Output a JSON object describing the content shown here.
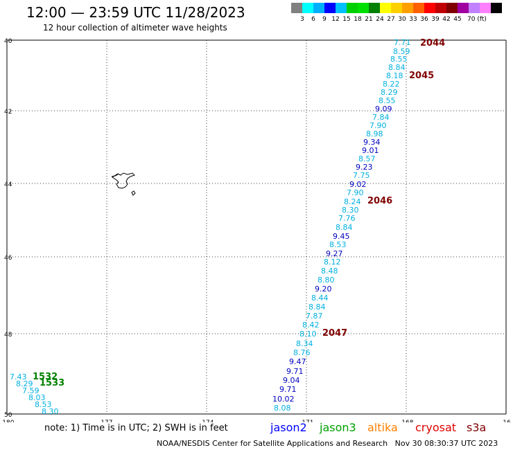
{
  "title": "12:00 — 23:59 UTC 11/28/2023",
  "subtitle": "12 hour collection of altimeter wave heights",
  "colorbar": {
    "colors": [
      "#808080",
      "#00ffff",
      "#00b0ff",
      "#0000ff",
      "#00c0ff",
      "#00d000",
      "#00e000",
      "#008000",
      "#ffff00",
      "#ffd000",
      "#ffa000",
      "#ff6000",
      "#ff0000",
      "#c00000",
      "#800000",
      "#a000a0",
      "#c080ff",
      "#ff80ff",
      "#000000"
    ],
    "labels": [
      "3",
      "6",
      "9",
      "12",
      "15",
      "18",
      "21",
      "24",
      "27",
      "30",
      "33",
      "36",
      "39",
      "42",
      "45",
      "70 (ft)"
    ]
  },
  "axes": {
    "lat_ticks": [
      "40",
      "42",
      "44",
      "46",
      "48",
      "50"
    ],
    "lon_ticks": [
      "-180",
      "-177",
      "-174",
      "-171",
      "-168",
      "-16"
    ]
  },
  "map_extent": {
    "lon_min": -180,
    "lon_max": -165,
    "lat_min": 40,
    "lat_max": 50
  },
  "track_times": [
    {
      "label": "2044",
      "color": "#800000"
    },
    {
      "label": "2045",
      "color": "#800000"
    },
    {
      "label": "2046",
      "color": "#800000"
    },
    {
      "label": "2047",
      "color": "#800000"
    },
    {
      "label": "1532",
      "color": "#008000"
    },
    {
      "label": "1533",
      "color": "#008000"
    }
  ],
  "wave_heights": [
    {
      "v": "7.71",
      "c": "#00b0e0"
    },
    {
      "v": "8.59",
      "c": "#00b0e0"
    },
    {
      "v": "8.55",
      "c": "#00b0e0"
    },
    {
      "v": "8.84",
      "c": "#00b0e0"
    },
    {
      "v": "8.18",
      "c": "#00b0e0"
    },
    {
      "v": "8.22",
      "c": "#00b0e0"
    },
    {
      "v": "8.29",
      "c": "#00b0e0"
    },
    {
      "v": "8.55",
      "c": "#00b0e0"
    },
    {
      "v": "9.09",
      "c": "#0000c0"
    },
    {
      "v": "7.84",
      "c": "#00b0e0"
    },
    {
      "v": "7.90",
      "c": "#00b0e0"
    },
    {
      "v": "8.98",
      "c": "#00b0e0"
    },
    {
      "v": "9.34",
      "c": "#0000c0"
    },
    {
      "v": "9.01",
      "c": "#0000c0"
    },
    {
      "v": "8.57",
      "c": "#00b0e0"
    },
    {
      "v": "9.23",
      "c": "#0000c0"
    },
    {
      "v": "7.75",
      "c": "#00b0e0"
    },
    {
      "v": "9.02",
      "c": "#0000c0"
    },
    {
      "v": "7.90",
      "c": "#00b0e0"
    },
    {
      "v": "8.24",
      "c": "#00b0e0"
    },
    {
      "v": "8.30",
      "c": "#00b0e0"
    },
    {
      "v": "7.76",
      "c": "#00b0e0"
    },
    {
      "v": "8.84",
      "c": "#00b0e0"
    },
    {
      "v": "9.45",
      "c": "#0000c0"
    },
    {
      "v": "8.53",
      "c": "#00b0e0"
    },
    {
      "v": "9.27",
      "c": "#0000c0"
    },
    {
      "v": "8.12",
      "c": "#00b0e0"
    },
    {
      "v": "8.48",
      "c": "#00b0e0"
    },
    {
      "v": "8.80",
      "c": "#00b0e0"
    },
    {
      "v": "9.20",
      "c": "#0000c0"
    },
    {
      "v": "8.44",
      "c": "#00b0e0"
    },
    {
      "v": "8.84",
      "c": "#00b0e0"
    },
    {
      "v": "7.87",
      "c": "#00b0e0"
    },
    {
      "v": "8.42",
      "c": "#00b0e0"
    },
    {
      "v": "8.10",
      "c": "#00b0e0"
    },
    {
      "v": "8.34",
      "c": "#00b0e0"
    },
    {
      "v": "8.76",
      "c": "#00b0e0"
    },
    {
      "v": "9.47",
      "c": "#0000c0"
    },
    {
      "v": "9.71",
      "c": "#0000c0"
    },
    {
      "v": "9.04",
      "c": "#0000c0"
    },
    {
      "v": "9.71",
      "c": "#0000c0"
    },
    {
      "v": "10.02",
      "c": "#0000c0"
    },
    {
      "v": "8.08",
      "c": "#00b0e0"
    },
    {
      "v": "7.43",
      "c": "#00b0e0"
    },
    {
      "v": "8.29",
      "c": "#00b0e0"
    },
    {
      "v": "7.59",
      "c": "#00b0e0"
    },
    {
      "v": "8.03",
      "c": "#00b0e0"
    },
    {
      "v": "8.53",
      "c": "#00b0e0"
    },
    {
      "v": "8.30",
      "c": "#00b0e0"
    }
  ],
  "footer": {
    "note": "note: 1) Time is in UTC; 2) SWH is in feet",
    "satellites": [
      {
        "name": "jason2",
        "color": "#0000ff"
      },
      {
        "name": "jason3",
        "color": "#00a000"
      },
      {
        "name": "altika",
        "color": "#ff8000"
      },
      {
        "name": "cryosat",
        "color": "#e00000"
      },
      {
        "name": "s3a",
        "color": "#800000"
      }
    ],
    "credit": "NOAA/NESDIS Center for Satellite Applications and Research   Nov 30 08:30:37 UTC 2023"
  }
}
